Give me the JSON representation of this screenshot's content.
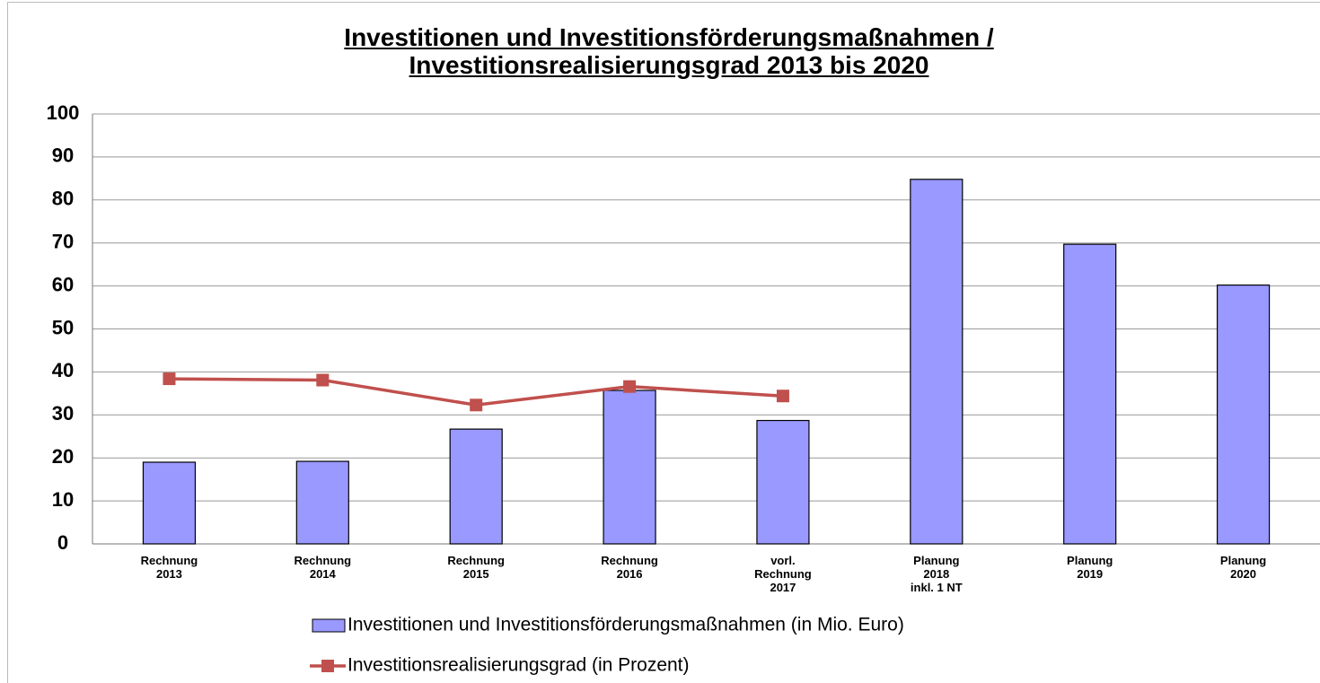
{
  "chart_data": {
    "type": "bar",
    "title": "Investitionen und Investitionsförderungsmaßnahmen /\nInvestitionsrealisierungsgrad 2013 bis 2020",
    "categories": [
      "Rechnung\n2013",
      "Rechnung\n2014",
      "Rechnung\n2015",
      "Rechnung\n2016",
      "vorl.\nRechnung\n2017",
      "Planung\n2018\ninkl. 1 NT",
      "Planung\n2019",
      "Planung\n2020"
    ],
    "series": [
      {
        "name": "Investitionen und Investitionsförderungsmaßnahmen (in Mio. Euro)",
        "type": "bar",
        "color": "#9999ff",
        "values": [
          19,
          19.2,
          26.7,
          35.7,
          28.7,
          84.8,
          69.7,
          60.2
        ]
      },
      {
        "name": "Investitionsrealisierungsgrad (in Prozent)",
        "type": "line",
        "color": "#c0504d",
        "values": [
          38.4,
          38.1,
          32.3,
          36.6,
          34.4,
          null,
          null,
          null
        ]
      }
    ],
    "ylim": [
      0,
      100
    ],
    "yticks": [
      0,
      10,
      20,
      30,
      40,
      50,
      60,
      70,
      80,
      90,
      100
    ],
    "grid": true,
    "legend": "bottom"
  }
}
